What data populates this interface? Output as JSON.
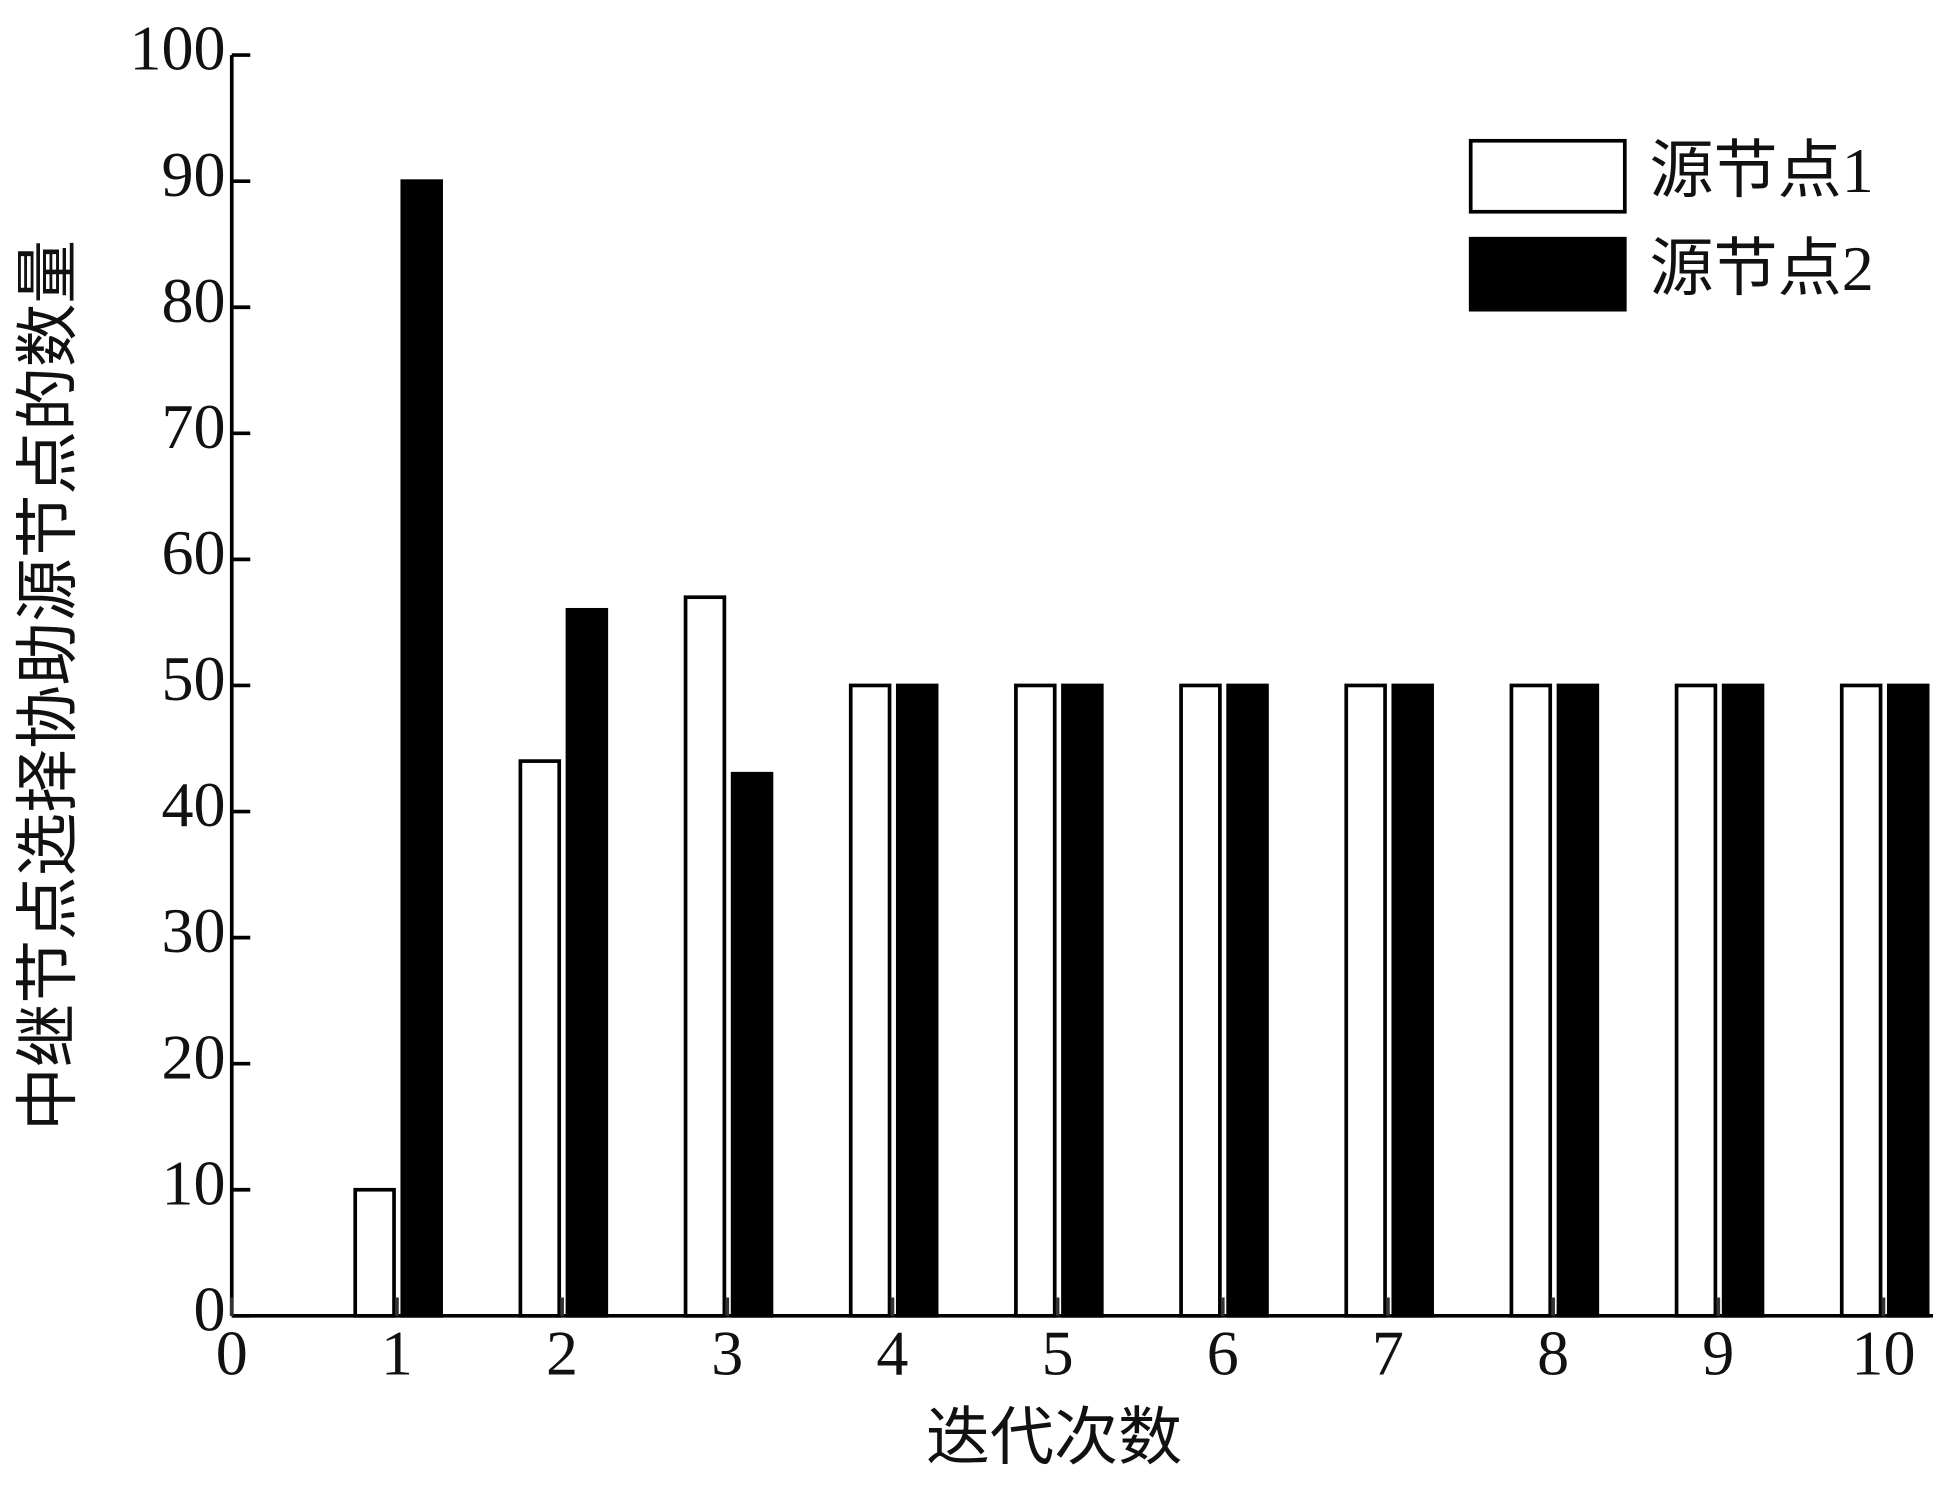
{
  "chart_data": {
    "type": "bar",
    "x_label": "迭代次数",
    "y_label": "中继节点选择协助源节点的数量",
    "x": [
      1,
      2,
      3,
      4,
      5,
      6,
      7,
      8,
      9,
      10
    ],
    "series": [
      {
        "name": "源节点1",
        "color": "#ffffff",
        "values": [
          10,
          44,
          57,
          50,
          50,
          50,
          50,
          50,
          50,
          50
        ]
      },
      {
        "name": "源节点2",
        "color": "#000000",
        "values": [
          90,
          56,
          43,
          50,
          50,
          50,
          50,
          50,
          50,
          50
        ]
      }
    ],
    "xlim": [
      0,
      10.3
    ],
    "xticks": [
      0,
      1,
      2,
      3,
      4,
      5,
      6,
      7,
      8,
      9,
      10
    ],
    "ylim": [
      0,
      100
    ],
    "yticks": [
      0,
      10,
      20,
      30,
      40,
      50,
      60,
      70,
      80,
      90,
      100
    ],
    "grid": false,
    "legend": "upper right"
  }
}
